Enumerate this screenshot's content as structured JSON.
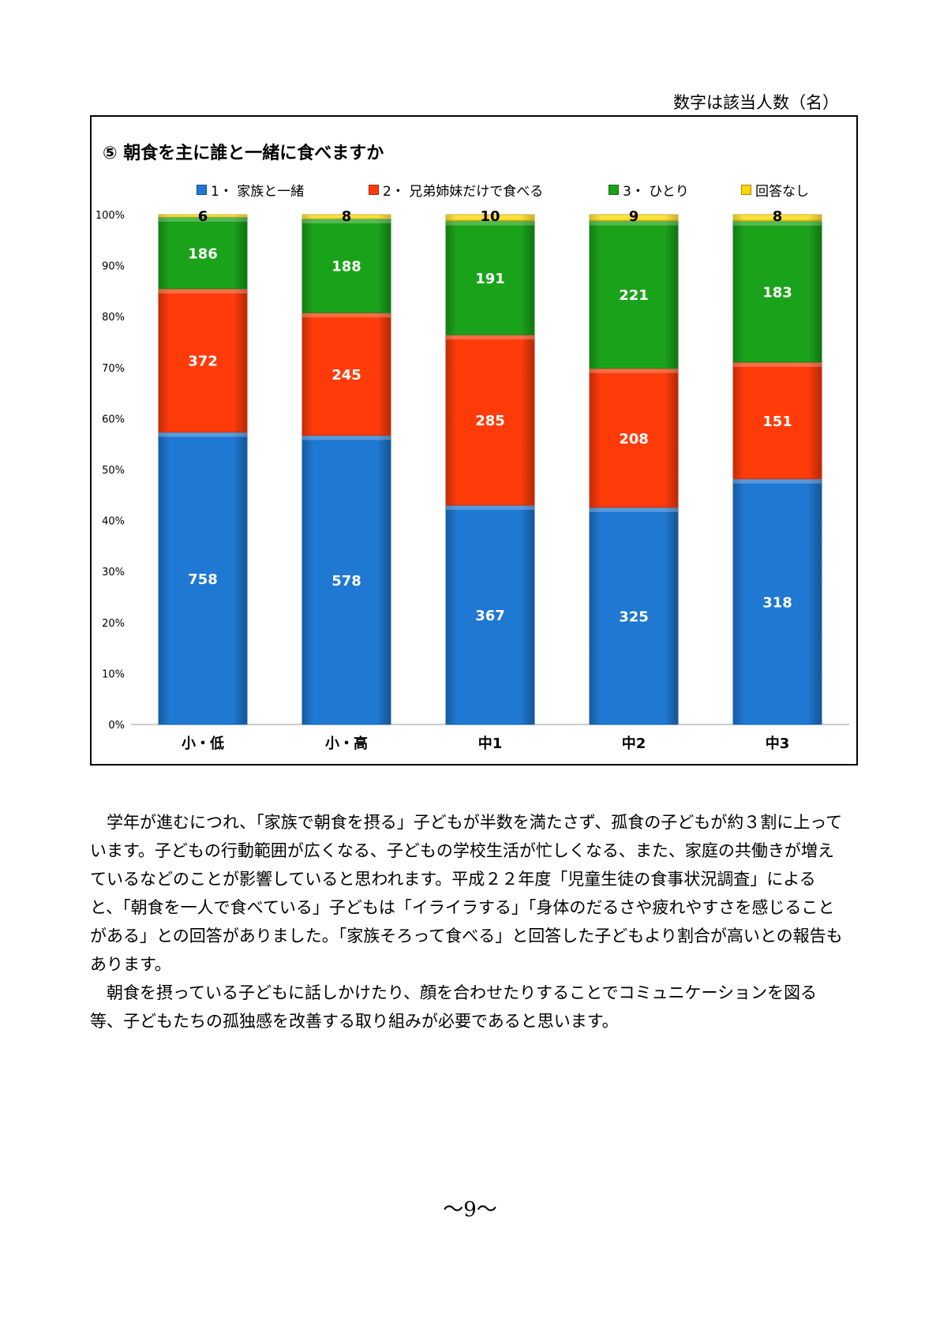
{
  "page": {
    "note": "数字は該当人数（名）",
    "paragraphs": [
      "学年が進むにつれ、「家族で朝食を摂る」子どもが半数を満たさず、孤食の子どもが約３割に上っています。子どもの行動範囲が広くなる、子どもの学校生活が忙しくなる、また、家庭の共働きが増えているなどのことが影響していると思われます。平成２２年度「児童生徒の食事状況調査」によると、「朝食を一人で食べている」子どもは「イライラする」「身体のだるさや疲れやすさを感じることがある」との回答がありました。「家族そろって食べる」と回答した子どもより割合が高いとの報告もあります。",
      "朝食を摂っている子どもに話しかけたり、顔を合わせたりすることでコミュニケーションを図る等、子どもたちの孤独感を改善する取り組みが必要であると思います。"
    ],
    "page_number": "～9～"
  },
  "chart_data": {
    "type": "bar",
    "stacked": true,
    "normalized": true,
    "title": "⑤  朝食を主に誰と一緒に食べますか",
    "categories": [
      "小・低",
      "小・高",
      "中1",
      "中2",
      "中3"
    ],
    "series": [
      {
        "name": "1・ 家族と一緒",
        "color": "#1f78d1",
        "values": [
          758,
          578,
          367,
          325,
          318
        ]
      },
      {
        "name": "2・ 兄弟姉妹だけで食べる",
        "color": "#ff3b0a",
        "values": [
          372,
          245,
          285,
          208,
          151
        ]
      },
      {
        "name": "3・ ひとり",
        "color": "#1aa31a",
        "values": [
          186,
          188,
          191,
          221,
          183
        ]
      },
      {
        "name": "回答なし",
        "color": "#ffd400",
        "values": [
          6,
          8,
          10,
          9,
          8
        ]
      }
    ],
    "yticks": [
      "0%",
      "10%",
      "20%",
      "30%",
      "40%",
      "50%",
      "60%",
      "70%",
      "80%",
      "90%",
      "100%"
    ],
    "ylim": [
      0,
      100
    ],
    "legend_position": "top",
    "grid": false
  }
}
